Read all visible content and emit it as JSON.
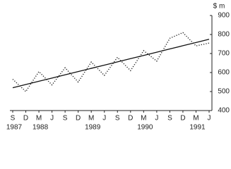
{
  "chart_data": {
    "type": "line",
    "y_unit_label": "$ m",
    "categories": [
      {
        "label": "S",
        "year": "1987"
      },
      {
        "label": "D",
        "year": null
      },
      {
        "label": "M",
        "year": "1988"
      },
      {
        "label": "J",
        "year": null
      },
      {
        "label": "S",
        "year": null
      },
      {
        "label": "D",
        "year": null
      },
      {
        "label": "M",
        "year": "1989"
      },
      {
        "label": "J",
        "year": null
      },
      {
        "label": "S",
        "year": null
      },
      {
        "label": "D",
        "year": null
      },
      {
        "label": "M",
        "year": "1990"
      },
      {
        "label": "J",
        "year": null
      },
      {
        "label": "S",
        "year": null
      },
      {
        "label": "D",
        "year": null
      },
      {
        "label": "M",
        "year": "1991"
      },
      {
        "label": "J",
        "year": null
      }
    ],
    "series": [
      {
        "style": "dotted",
        "color": "#222",
        "values": [
          565,
          500,
          605,
          535,
          625,
          550,
          655,
          585,
          680,
          610,
          715,
          660,
          780,
          810,
          740,
          755
        ]
      },
      {
        "style": "solid",
        "color": "#111",
        "values": [
          520,
          537,
          554,
          571,
          588,
          605,
          622,
          639,
          656,
          673,
          690,
          707,
          724,
          741,
          758,
          775
        ]
      }
    ],
    "ylim": [
      400,
      900
    ],
    "yticks": [
      400,
      500,
      600,
      700,
      800,
      900
    ]
  }
}
